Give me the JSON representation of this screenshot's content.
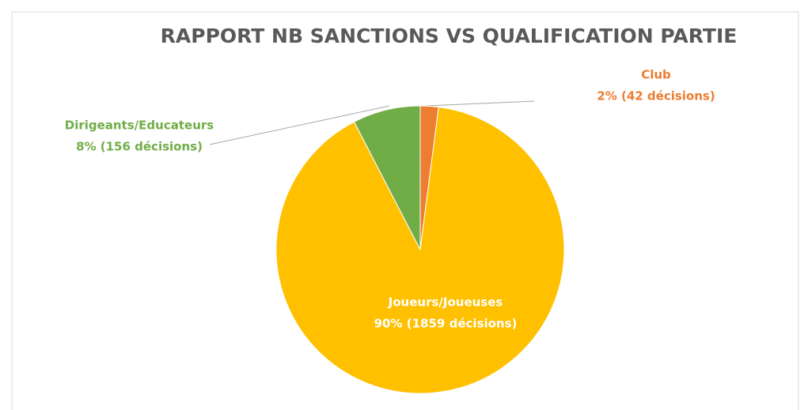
{
  "chart_data": {
    "type": "pie",
    "title": "RAPPORT NB SANCTIONS VS QUALIFICATION PARTIE",
    "categories": [
      "Club",
      "Joueurs/Joueuses",
      "Dirigeants/Educateurs"
    ],
    "values": [
      42,
      1859,
      156
    ],
    "value_labels": [
      "2% (42 décisions)",
      "90% (1859 décisions)",
      "8% (156 décisions)"
    ],
    "colors": [
      "#ed7d31",
      "#ffc000",
      "#70ad47"
    ],
    "label_colors": [
      "#ed7d31",
      "#ffffff",
      "#70ad47"
    ]
  }
}
